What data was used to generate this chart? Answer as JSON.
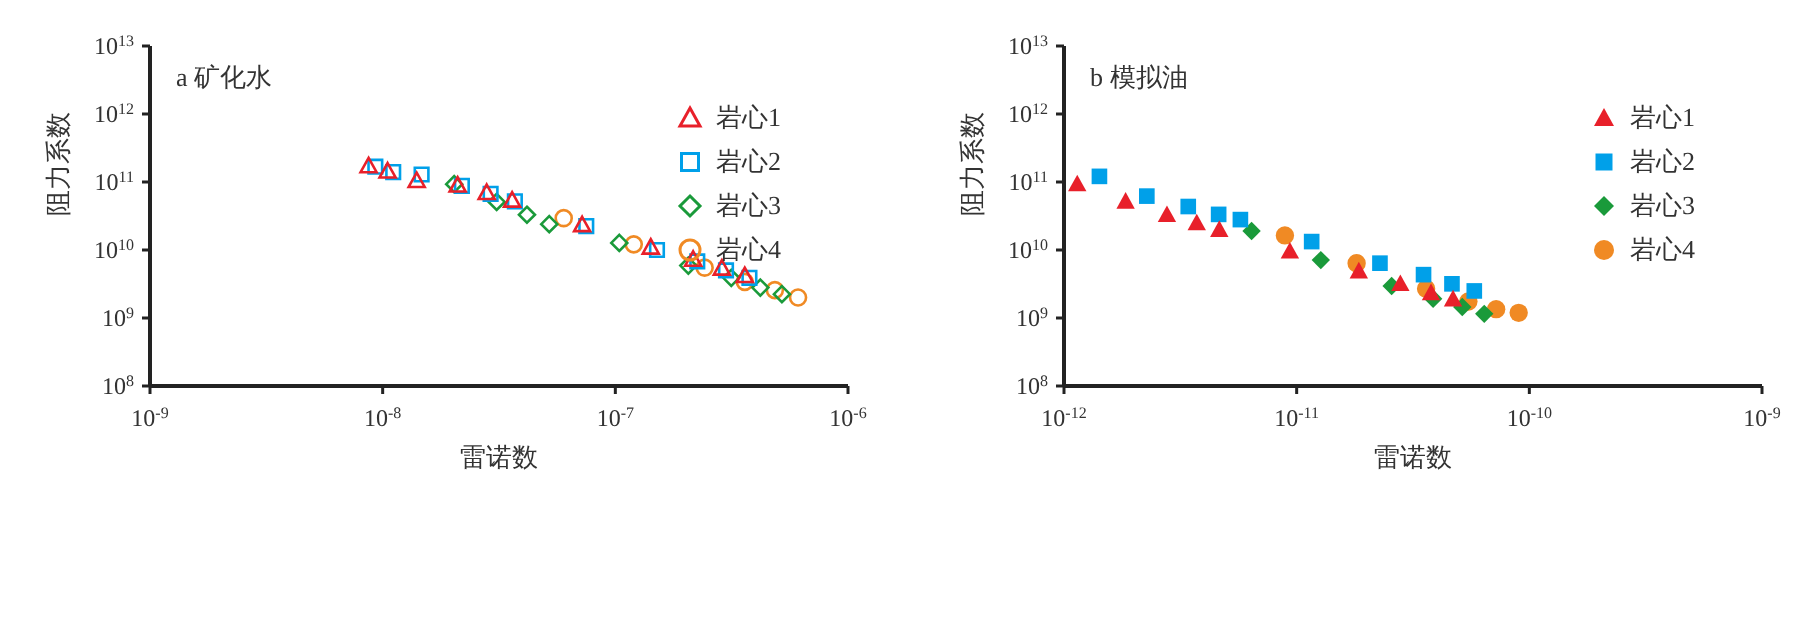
{
  "chart_data": [
    {
      "type": "scatter",
      "title": "a 矿化水",
      "xlabel": "雷诺数",
      "ylabel": "阻力系数",
      "log": "xy",
      "grid": false,
      "legend": "top right",
      "xlim": [
        1e-09,
        1e-06
      ],
      "xticks": [
        {
          "value": 1e-09,
          "label": "10$^{-9}$"
        },
        {
          "value": 1e-08,
          "label": "10$^{-8}$"
        },
        {
          "value": 1e-07,
          "label": "10$^{-7}$"
        },
        {
          "value": 1e-06,
          "label": "10$^{-6}$"
        }
      ],
      "ylim": [
        100000000.0,
        10000000000000.0
      ],
      "yticks": [
        {
          "value": 100000000.0,
          "label": "10$^{8}$"
        },
        {
          "value": 1000000000.0,
          "label": "10$^{9}$"
        },
        {
          "value": 10000000000.0,
          "label": "10$^{10}$"
        },
        {
          "value": 100000000000.0,
          "label": "10$^{11}$"
        },
        {
          "value": 1000000000000.0,
          "label": "10$^{12}$"
        },
        {
          "value": 10000000000000.0,
          "label": "10$^{13}$"
        }
      ],
      "series": [
        {
          "name": "岩心1",
          "color": "#e8202a",
          "marker": "triangle",
          "x": [
            8.7e-09,
            1.05e-08,
            1.4e-08,
            2.1e-08,
            2.8e-08,
            3.6e-08,
            7.2e-08,
            1.42e-07,
            2.16e-07,
            2.87e-07,
            3.6e-07
          ],
          "values": [
            173000000000.0,
            145000000000.0,
            105000000000.0,
            90000000000.0,
            70000000000.0,
            54000000000.0,
            23500000000.0,
            11000000000.0,
            7300000000.0,
            5400000000.0,
            4200000000.0
          ]
        },
        {
          "name": "岩心2",
          "color": "#00a0e9",
          "marker": "square",
          "x": [
            9.3e-09,
            1.11e-08,
            1.47e-08,
            2.19e-08,
            2.91e-08,
            3.7e-08,
            7.5e-08,
            1.51e-07,
            2.25e-07,
            2.99e-07,
            3.77e-07
          ],
          "values": [
            168000000000.0,
            140000000000.0,
            129000000000.0,
            88000000000.0,
            67000000000.0,
            52000000000.0,
            22500000000.0,
            10000000000.0,
            6800000000.0,
            5000000000.0,
            3900000000.0
          ]
        },
        {
          "name": "岩心3",
          "color": "#1a9a3a",
          "marker": "diamond",
          "x": [
            2.03e-08,
            3.09e-08,
            4.17e-08,
            5.2e-08,
            1.04e-07,
            2.06e-07,
            3.15e-07,
            4.2e-07,
            5.2e-07
          ],
          "values": [
            93000000000.0,
            51000000000.0,
            33000000000.0,
            24000000000.0,
            12700000000.0,
            5900000000.0,
            3900000000.0,
            2800000000.0,
            2240000000.0
          ]
        },
        {
          "name": "岩心4",
          "color": "#f08a24",
          "marker": "circle",
          "x": [
            6e-08,
            1.2e-07,
            2.42e-07,
            3.6e-07,
            4.85e-07,
            6.1e-07
          ],
          "values": [
            29400000000.0,
            12100000000.0,
            5500000000.0,
            3400000000.0,
            2570000000.0,
            2000000000.0
          ]
        }
      ]
    },
    {
      "type": "scatter",
      "title": "b 模拟油",
      "xlabel": "雷诺数",
      "ylabel": "阻力系数",
      "log": "xy",
      "grid": false,
      "legend": "top right",
      "xlim": [
        1e-12,
        1e-09
      ],
      "xticks": [
        {
          "value": 1e-12,
          "label": "10$^{-12}$"
        },
        {
          "value": 1e-11,
          "label": "10$^{-11}$"
        },
        {
          "value": 1e-10,
          "label": "10$^{-10}$"
        },
        {
          "value": 1e-09,
          "label": "10$^{-9}$"
        }
      ],
      "ylim": [
        100000000.0,
        10000000000000.0
      ],
      "yticks": [
        {
          "value": 100000000.0,
          "label": "10$^{8}$"
        },
        {
          "value": 1000000000.0,
          "label": "10$^{9}$"
        },
        {
          "value": 10000000000.0,
          "label": "10$^{10}$"
        },
        {
          "value": 100000000000.0,
          "label": "10$^{11}$"
        },
        {
          "value": 1000000000000.0,
          "label": "10$^{12}$"
        },
        {
          "value": 10000000000000.0,
          "label": "10$^{13}$"
        }
      ],
      "series": [
        {
          "name": "岩心1",
          "color": "#e8202a",
          "marker": "triangle",
          "x": [
            1.14e-12,
            1.84e-12,
            2.77e-12,
            3.72e-12,
            4.65e-12,
            9.35e-12,
            1.85e-11,
            2.79e-11,
            3.78e-11,
            4.7e-11
          ],
          "values": [
            94000000000.0,
            52000000000.0,
            33000000000.0,
            25000000000.0,
            20000000000.0,
            9600000000.0,
            4900000000.0,
            3200000000.0,
            2350000000.0,
            1900000000.0
          ]
        },
        {
          "name": "岩心2",
          "color": "#00a0e9",
          "marker": "square",
          "x": [
            1.42e-12,
            2.27e-12,
            3.42e-12,
            4.62e-12,
            5.73e-12,
            1.16e-11,
            2.28e-11,
            3.51e-11,
            4.65e-11,
            5.8e-11
          ],
          "values": [
            121000000000.0,
            62000000000.0,
            43600000000.0,
            33400000000.0,
            28000000000.0,
            13300000000.0,
            6400000000.0,
            4340000000.0,
            3180000000.0,
            2500000000.0
          ]
        },
        {
          "name": "岩心3",
          "color": "#1a9a3a",
          "marker": "diamond",
          "x": [
            6.4e-12,
            1.27e-11,
            2.56e-11,
            3.86e-11,
            5.15e-11,
            6.4e-11
          ],
          "values": [
            19000000000.0,
            7100000000.0,
            2950000000.0,
            1920000000.0,
            1450000000.0,
            1150000000.0
          ]
        },
        {
          "name": "岩心4",
          "color": "#f08a24",
          "marker": "circle",
          "x": [
            8.9e-12,
            1.81e-11,
            3.6e-11,
            5.47e-11,
            7.2e-11,
            9e-11
          ],
          "values": [
            16400000000.0,
            6400000000.0,
            2700000000.0,
            1750000000.0,
            1350000000.0,
            1190000000.0
          ]
        }
      ]
    }
  ]
}
